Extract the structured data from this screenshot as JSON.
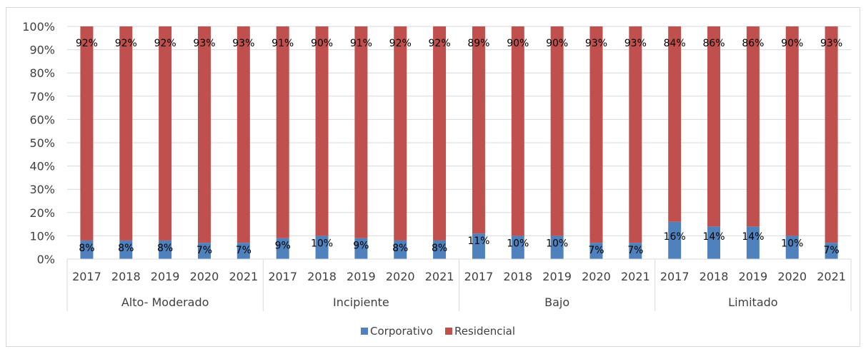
{
  "chart_data": {
    "type": "bar",
    "stacked": true,
    "percent_stacked": true,
    "groups": [
      {
        "name": "Alto- Moderado",
        "years": [
          "2017",
          "2018",
          "2019",
          "2020",
          "2021"
        ]
      },
      {
        "name": "Incipiente",
        "years": [
          "2017",
          "2018",
          "2019",
          "2020",
          "2021"
        ]
      },
      {
        "name": "Bajo",
        "years": [
          "2017",
          "2018",
          "2019",
          "2020",
          "2021"
        ]
      },
      {
        "name": "Limitado",
        "years": [
          "2017",
          "2018",
          "2019",
          "2020",
          "2021"
        ]
      }
    ],
    "series": [
      {
        "name": "Corporativo",
        "color": "#4f81bd",
        "values": [
          8,
          8,
          8,
          7,
          7,
          9,
          10,
          9,
          8,
          8,
          11,
          10,
          10,
          7,
          7,
          16,
          14,
          14,
          10,
          7
        ],
        "labels": [
          "8%",
          "8%",
          "8%",
          "7%",
          "7%",
          "9%",
          "10%",
          "9%",
          "8%",
          "8%",
          "11%",
          "10%",
          "10%",
          "7%",
          "7%",
          "16%",
          "14%",
          "14%",
          "10%",
          "7%"
        ]
      },
      {
        "name": "Residencial",
        "color": "#c0504d",
        "values": [
          92,
          92,
          92,
          93,
          93,
          91,
          90,
          91,
          92,
          92,
          89,
          90,
          90,
          93,
          93,
          84,
          86,
          86,
          90,
          93
        ],
        "labels": [
          "92%",
          "92%",
          "92%",
          "93%",
          "93%",
          "91%",
          "90%",
          "91%",
          "92%",
          "92%",
          "89%",
          "90%",
          "90%",
          "93%",
          "93%",
          "84%",
          "86%",
          "86%",
          "90%",
          "93%"
        ]
      }
    ],
    "y_ticks": [
      "0%",
      "10%",
      "20%",
      "30%",
      "40%",
      "50%",
      "60%",
      "70%",
      "80%",
      "90%",
      "100%"
    ],
    "ylim": [
      0,
      100
    ],
    "grid": true,
    "legend_position": "bottom"
  }
}
